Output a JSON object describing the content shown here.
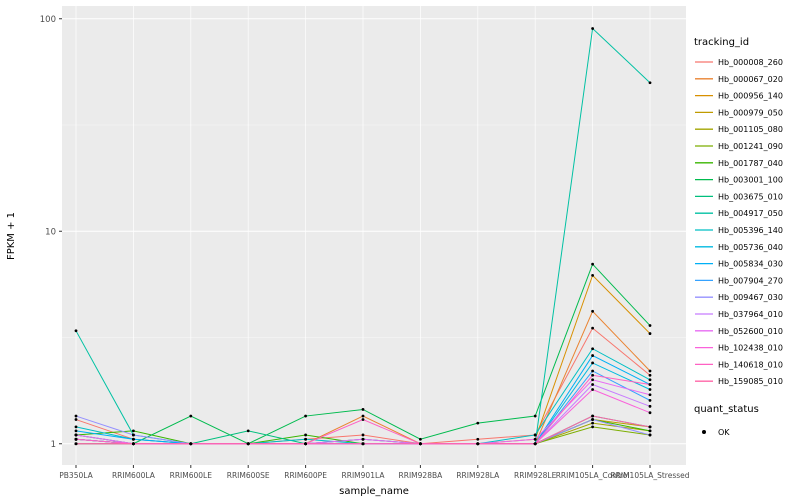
{
  "chart": {
    "xlabel": "sample_name",
    "ylabel": "FPKM + 1",
    "legend_title": "tracking_id",
    "legend2_title": "quant_status",
    "legend2_items": [
      {
        "label": "OK",
        "symbol": "point",
        "color": "#000000"
      }
    ]
  },
  "chart_data": {
    "type": "line",
    "title": "",
    "xlabel": "sample_name",
    "ylabel": "FPKM + 1",
    "y_scale": "log10",
    "ylim": [
      1,
      100
    ],
    "y_ticks": [
      1,
      10,
      100
    ],
    "y_minor_ticks": [
      3.1623,
      31.623
    ],
    "grid": true,
    "legend_position": "right",
    "panel_bg": "#EBEBEB",
    "grid_color": "#FFFFFF",
    "tick_color": "#333333",
    "tick_label_color": "#4D4D4D",
    "point_color": "#000000",
    "categories": [
      "PB350LA",
      "RRIM600LA",
      "RRIM600LE",
      "RRIM600SE",
      "RRIM600PE",
      "RRIM901LA",
      "RRIM928BA",
      "RRIM928LA",
      "RRIM928LE",
      "RRIM105LA_Control",
      "RRIM105LA_Stressed"
    ],
    "series": [
      {
        "name": "Hb_000008_260",
        "color": "#F8766D",
        "values": [
          1.3,
          1.05,
          1.0,
          1.0,
          1.05,
          1.1,
          1.0,
          1.05,
          1.1,
          3.5,
          2.1
        ]
      },
      {
        "name": "Hb_000067_020",
        "color": "#EA8331",
        "values": [
          1.05,
          1.0,
          1.0,
          1.0,
          1.0,
          1.35,
          1.0,
          1.0,
          1.0,
          4.2,
          2.2
        ]
      },
      {
        "name": "Hb_000956_140",
        "color": "#D89000",
        "values": [
          1.1,
          1.0,
          1.0,
          1.0,
          1.0,
          1.0,
          1.0,
          1.0,
          1.05,
          6.2,
          3.3
        ]
      },
      {
        "name": "Hb_000979_050",
        "color": "#C09B00",
        "values": [
          1.0,
          1.0,
          1.0,
          1.0,
          1.0,
          1.0,
          1.0,
          1.0,
          1.0,
          1.3,
          1.2
        ]
      },
      {
        "name": "Hb_001105_080",
        "color": "#A3A500",
        "values": [
          1.05,
          1.0,
          1.0,
          1.0,
          1.0,
          1.05,
          1.0,
          1.0,
          1.0,
          1.25,
          1.15
        ]
      },
      {
        "name": "Hb_001241_090",
        "color": "#7CAE00",
        "values": [
          1.0,
          1.0,
          1.0,
          1.0,
          1.0,
          1.0,
          1.0,
          1.0,
          1.0,
          1.2,
          1.1
        ]
      },
      {
        "name": "Hb_001787_040",
        "color": "#39B600",
        "values": [
          1.1,
          1.15,
          1.0,
          1.0,
          1.1,
          1.0,
          1.0,
          1.0,
          1.0,
          1.3,
          1.15
        ]
      },
      {
        "name": "Hb_003001_100",
        "color": "#00BB4E",
        "values": [
          1.0,
          1.0,
          1.35,
          1.0,
          1.35,
          1.45,
          1.05,
          1.25,
          1.35,
          7.0,
          3.6
        ]
      },
      {
        "name": "Hb_003675_010",
        "color": "#00BF7D",
        "values": [
          1.05,
          1.0,
          1.0,
          1.15,
          1.0,
          1.0,
          1.0,
          1.0,
          1.0,
          1.35,
          1.2
        ]
      },
      {
        "name": "Hb_004917_050",
        "color": "#00C1A3",
        "values": [
          3.4,
          1.1,
          1.0,
          1.0,
          1.0,
          1.0,
          1.0,
          1.0,
          1.0,
          90.0,
          50.0
        ]
      },
      {
        "name": "Hb_005396_140",
        "color": "#00BFC4",
        "values": [
          1.2,
          1.05,
          1.0,
          1.0,
          1.05,
          1.0,
          1.0,
          1.0,
          1.1,
          2.8,
          2.0
        ]
      },
      {
        "name": "Hb_005736_040",
        "color": "#00BAE0",
        "values": [
          1.1,
          1.0,
          1.0,
          1.0,
          1.0,
          1.0,
          1.0,
          1.0,
          1.0,
          2.4,
          1.8
        ]
      },
      {
        "name": "Hb_005834_030",
        "color": "#00B0F6",
        "values": [
          1.15,
          1.05,
          1.0,
          1.0,
          1.0,
          1.05,
          1.0,
          1.0,
          1.0,
          2.6,
          1.9
        ]
      },
      {
        "name": "Hb_007904_270",
        "color": "#35A2FF",
        "values": [
          1.05,
          1.0,
          1.0,
          1.0,
          1.0,
          1.0,
          1.0,
          1.0,
          1.0,
          2.2,
          1.6
        ]
      },
      {
        "name": "Hb_009467_030",
        "color": "#9590FF",
        "values": [
          1.35,
          1.1,
          1.0,
          1.0,
          1.0,
          1.0,
          1.0,
          1.0,
          1.0,
          1.3,
          1.1
        ]
      },
      {
        "name": "Hb_037964_010",
        "color": "#C77CFF",
        "values": [
          1.05,
          1.0,
          1.0,
          1.0,
          1.0,
          1.0,
          1.0,
          1.0,
          1.0,
          1.9,
          1.5
        ]
      },
      {
        "name": "Hb_052600_010",
        "color": "#E76BF3",
        "values": [
          1.1,
          1.0,
          1.0,
          1.0,
          1.0,
          1.05,
          1.0,
          1.0,
          1.05,
          2.0,
          1.7
        ]
      },
      {
        "name": "Hb_102438_010",
        "color": "#FA62DB",
        "values": [
          1.0,
          1.0,
          1.0,
          1.0,
          1.0,
          1.0,
          1.0,
          1.0,
          1.0,
          1.8,
          1.4
        ]
      },
      {
        "name": "Hb_140618_010",
        "color": "#FF61C3",
        "values": [
          1.05,
          1.0,
          1.0,
          1.0,
          1.0,
          1.3,
          1.0,
          1.0,
          1.0,
          2.1,
          1.9
        ]
      },
      {
        "name": "Hb_159085_010",
        "color": "#FF65A7",
        "values": [
          1.0,
          1.0,
          1.0,
          1.0,
          1.0,
          1.0,
          1.0,
          1.0,
          1.0,
          1.35,
          1.2
        ]
      }
    ]
  }
}
